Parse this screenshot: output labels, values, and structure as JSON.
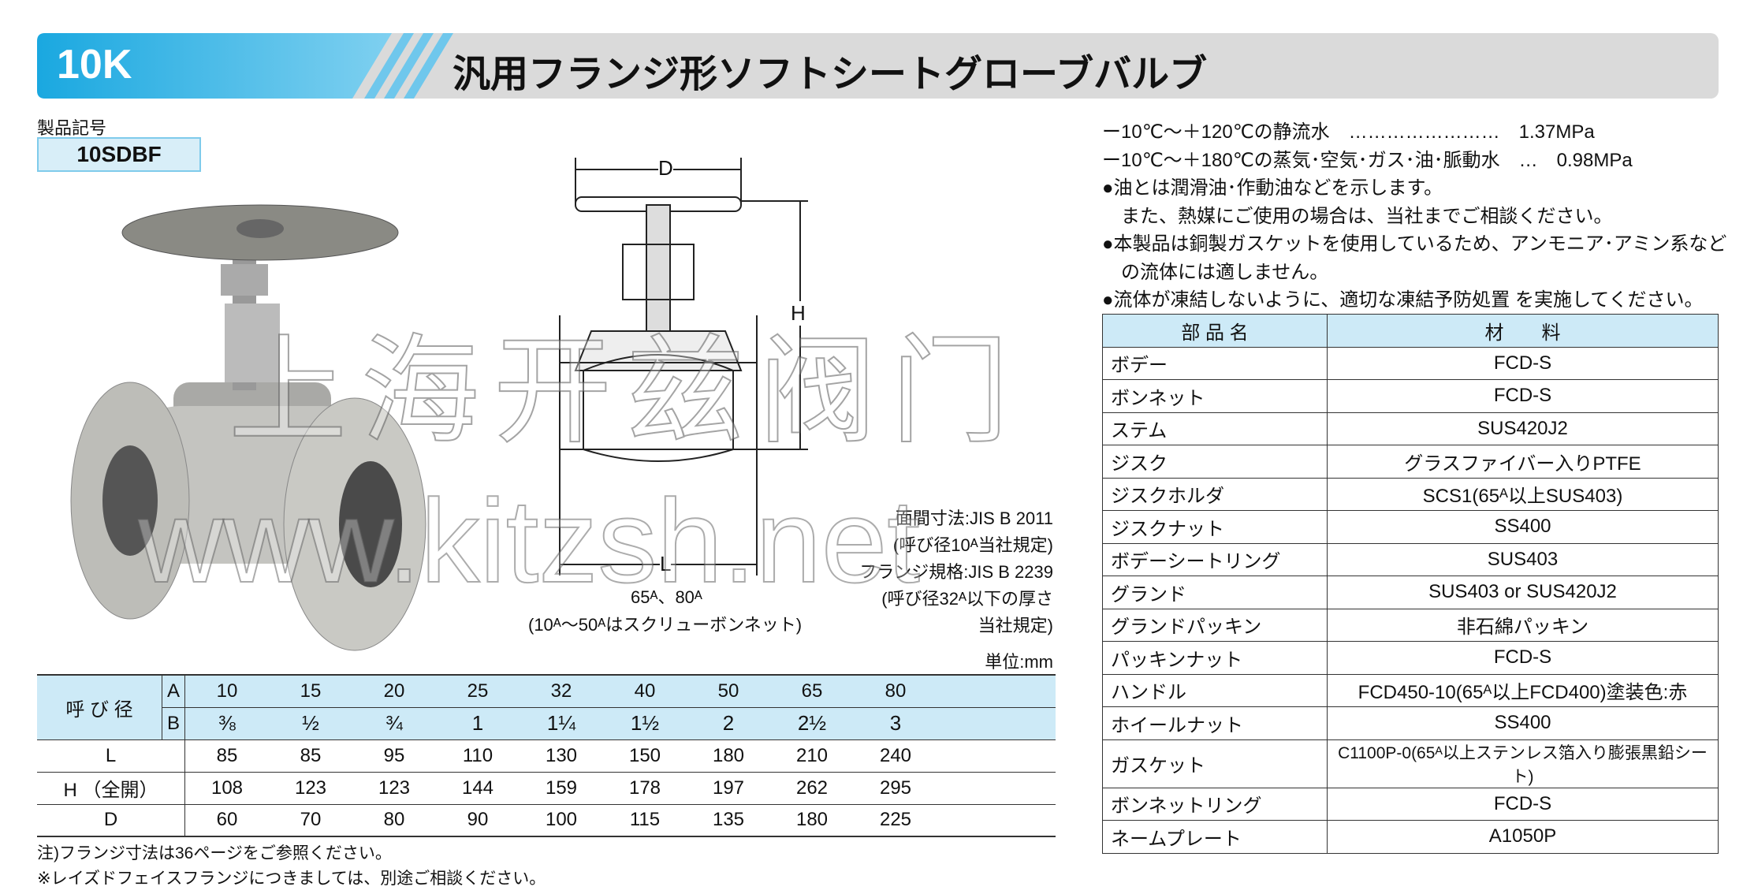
{
  "header": {
    "badge": "10K",
    "title": "汎用フランジ形ソフトシートグローブバルブ"
  },
  "product_code": {
    "label": "製品記号",
    "code": "10SDBF"
  },
  "specs": [
    "ー10℃～＋120℃の静流水　……………………　1.37MPa",
    "ー10℃～＋180℃の蒸気･空気･ガス･油･脈動水　…　0.98MPa",
    "●油とは潤滑油･作動油などを示します。",
    "　また、熱媒にご使用の場合は、当社までご相談ください。",
    "●本製品は銅製ガスケットを使用しているため、アンモニア･アミン系など",
    "　の流体には適しません。",
    "●流体が凍結しないように、適切な凍結予防処置 を実施してください。"
  ],
  "diagram": {
    "D": "D",
    "H": "H",
    "L": "L",
    "sizes_note": "65ᴬ、80ᴬ",
    "bonnet_note": "(10ᴬ～50ᴬはスクリューボンネット)",
    "standards": [
      "面間寸法:JIS B 2011",
      "(呼び径10ᴬ当社規定)",
      "フランジ規格:JIS B 2239",
      "(呼び径32ᴬ以下の厚さ",
      "当社規定)"
    ]
  },
  "unit": "単位:mm",
  "dimension_table": {
    "header_label": "呼 び 径",
    "A_label": "A",
    "B_label": "B",
    "A": [
      10,
      15,
      20,
      25,
      32,
      40,
      50,
      65,
      80
    ],
    "B": [
      "⅜",
      "½",
      "¾",
      "1",
      "1¼",
      "1½",
      "2",
      "2½",
      "3"
    ],
    "rows": [
      {
        "label": "L",
        "values": [
          85,
          85,
          95,
          110,
          130,
          150,
          180,
          210,
          240
        ]
      },
      {
        "label": "H （全開）",
        "values": [
          108,
          123,
          123,
          144,
          159,
          178,
          197,
          262,
          295
        ]
      },
      {
        "label": "D",
        "values": [
          60,
          70,
          80,
          90,
          100,
          115,
          135,
          180,
          225
        ]
      }
    ]
  },
  "notes": [
    "注)フランジ寸法は36ページをご参照ください。",
    "※レイズドフェイスフランジにつきましては、別途ご相談ください。"
  ],
  "materials_table": {
    "header": [
      "部 品 名",
      "材　　料"
    ],
    "rows": [
      [
        "ボデー",
        "FCD-S"
      ],
      [
        "ボンネット",
        "FCD-S"
      ],
      [
        "ステム",
        "SUS420J2"
      ],
      [
        "ジスク",
        "グラスファイバー入りPTFE"
      ],
      [
        "ジスクホルダ",
        "SCS1(65ᴬ以上SUS403)"
      ],
      [
        "ジスクナット",
        "SS400"
      ],
      [
        "ボデーシートリング",
        "SUS403"
      ],
      [
        "グランド",
        "SUS403 or SUS420J2"
      ],
      [
        "グランドパッキン",
        "非石綿パッキン"
      ],
      [
        "パッキンナット",
        "FCD-S"
      ],
      [
        "ハンドル",
        "FCD450-10(65ᴬ以上FCD400)塗装色:赤"
      ],
      [
        "ホイールナット",
        "SS400"
      ],
      [
        "ガスケット",
        "C1100P-0(65ᴬ以上ステンレス箔入り膨張黒鉛シート)"
      ],
      [
        "ボンネットリング",
        "FCD-S"
      ],
      [
        "ネームプレート",
        "A1050P"
      ]
    ]
  },
  "watermark": [
    "上海开兹阀门",
    "www.kitzsh.net"
  ]
}
